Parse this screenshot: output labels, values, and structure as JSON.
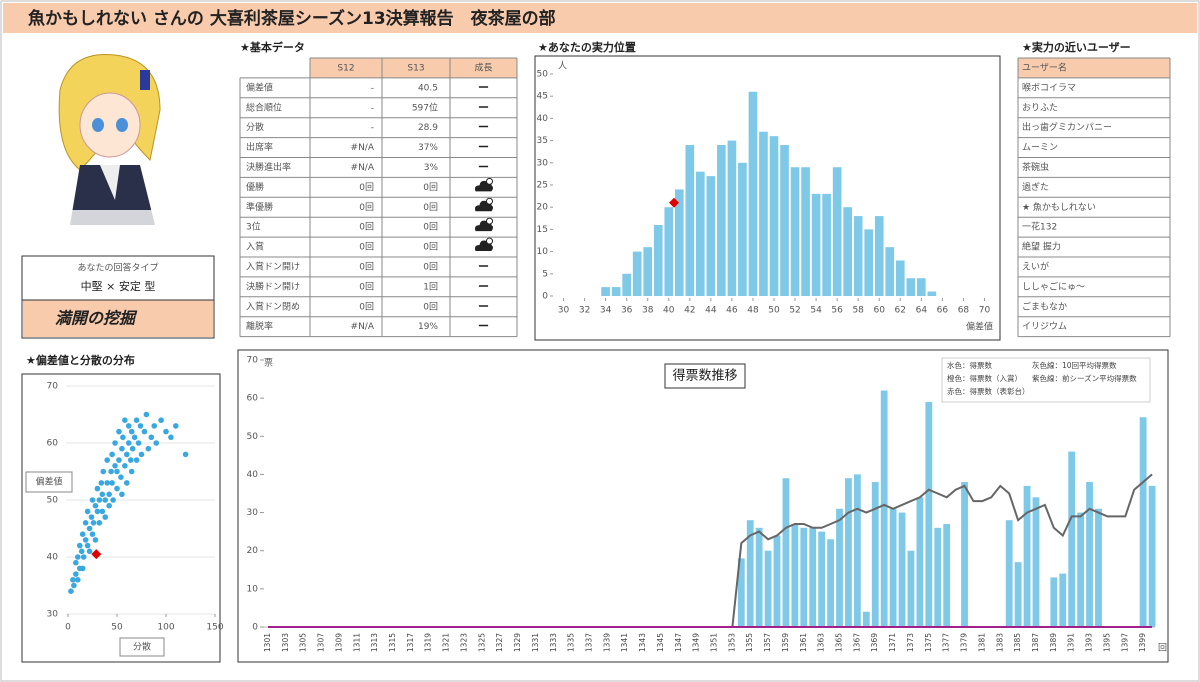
{
  "title": "魚かもしれない さんの 大喜利茶屋シーズン13決算報告　夜茶屋の部",
  "answer_type": {
    "heading": "あなたの回答タイプ",
    "type": "中堅 × 安定 型",
    "nickname": "満開の挖掘"
  },
  "basic_data": {
    "heading": "★基本データ",
    "columns": [
      "S12",
      "S13",
      "成長"
    ],
    "rows": [
      {
        "label": "偏差値",
        "s12": "-",
        "s13": "40.5",
        "growth": "ー"
      },
      {
        "label": "総合順位",
        "s12": "-",
        "s13": "597位",
        "growth": "ー"
      },
      {
        "label": "分散",
        "s12": "-",
        "s13": "28.9",
        "growth": "ー"
      },
      {
        "label": "出席率",
        "s12": "#N/A",
        "s13": "37%",
        "growth": "ー"
      },
      {
        "label": "決勝進出率",
        "s12": "#N/A",
        "s13": "3%",
        "growth": "ー"
      },
      {
        "label": "優勝",
        "s12": "0回",
        "s13": "0回",
        "growth": null
      },
      {
        "label": "準優勝",
        "s12": "0回",
        "s13": "0回",
        "growth": null
      },
      {
        "label": "3位",
        "s12": "0回",
        "s13": "0回",
        "growth": null
      },
      {
        "label": "入賞",
        "s12": "0回",
        "s13": "0回",
        "growth": null
      },
      {
        "label": "入賞ドン開け",
        "s12": "0回",
        "s13": "0回",
        "growth": "ー"
      },
      {
        "label": "決勝ドン開け",
        "s12": "0回",
        "s13": "1回",
        "growth": "ー"
      },
      {
        "label": "入賞ドン閉め",
        "s12": "0回",
        "s13": "0回",
        "growth": "ー"
      },
      {
        "label": "離脱率",
        "s12": "#N/A",
        "s13": "19%",
        "growth": "ー"
      }
    ]
  },
  "near_users": {
    "heading": "★実力の近いユーザー",
    "column": "ユーザー名",
    "names": [
      "喉ボコイラマ",
      "おりふた",
      "出っ歯グミカンパニー",
      "ムーミン",
      "茶碗虫",
      "過ぎた",
      "★ 魚かもしれない",
      "一花132",
      "絶望 握力",
      "えいが",
      "ししゃごにゅ〜",
      "ごまもなか",
      "イリジウム"
    ]
  },
  "chart_data": [
    {
      "type": "bar",
      "title": "★あなたの実力位置",
      "y_unit": "人",
      "xlabel": "偏差値",
      "x": [
        34,
        35,
        36,
        37,
        38,
        39,
        40,
        41,
        42,
        43,
        44,
        45,
        46,
        47,
        48,
        49,
        50,
        51,
        52,
        53,
        54,
        55,
        56,
        57,
        58,
        59,
        60,
        61,
        62,
        63,
        64,
        65
      ],
      "values": [
        2,
        2,
        5,
        10,
        11,
        16,
        20,
        24,
        34,
        28,
        27,
        34,
        35,
        30,
        46,
        37,
        36,
        34,
        29,
        29,
        23,
        23,
        29,
        20,
        18,
        15,
        18,
        11,
        8,
        4,
        4,
        1
      ],
      "color": "#7ec8e8",
      "xlim": [
        29,
        71
      ],
      "xticks": [
        30,
        32,
        34,
        36,
        38,
        40,
        42,
        44,
        46,
        48,
        50,
        52,
        54,
        56,
        58,
        60,
        62,
        64,
        66,
        68,
        70
      ],
      "ylim": [
        0,
        50
      ],
      "yticks": [
        0,
        5,
        10,
        15,
        20,
        25,
        30,
        35,
        40,
        45,
        50
      ],
      "highlight": {
        "x": 40.5,
        "y": 21,
        "color": "#e00000"
      }
    },
    {
      "type": "scatter",
      "title": "★偏差値と分散の分布",
      "xlabel": "分散",
      "ylabel": "偏差値",
      "x": [
        3,
        5,
        6,
        8,
        8,
        10,
        10,
        12,
        12,
        14,
        15,
        15,
        16,
        18,
        18,
        20,
        20,
        22,
        22,
        24,
        25,
        25,
        26,
        28,
        28,
        30,
        30,
        32,
        32,
        34,
        35,
        35,
        36,
        38,
        38,
        40,
        40,
        42,
        42,
        44,
        45,
        45,
        46,
        48,
        48,
        50,
        50,
        52,
        52,
        54,
        55,
        55,
        56,
        58,
        58,
        60,
        60,
        62,
        62,
        64,
        65,
        65,
        66,
        68,
        70,
        70,
        72,
        74,
        75,
        78,
        80,
        82,
        85,
        88,
        90,
        95,
        100,
        105,
        110,
        120
      ],
      "y": [
        34,
        36,
        35,
        37,
        39,
        36,
        40,
        38,
        42,
        41,
        38,
        44,
        40,
        43,
        46,
        42,
        48,
        45,
        41,
        47,
        44,
        50,
        46,
        49,
        43,
        48,
        52,
        46,
        50,
        53,
        48,
        51,
        55,
        50,
        47,
        53,
        57,
        51,
        49,
        55,
        53,
        58,
        50,
        56,
        60,
        52,
        55,
        57,
        62,
        54,
        59,
        51,
        61,
        56,
        64,
        58,
        53,
        60,
        63,
        57,
        55,
        62,
        59,
        61,
        64,
        57,
        60,
        63,
        58,
        62,
        65,
        59,
        61,
        63,
        60,
        64,
        62,
        61,
        63,
        58
      ],
      "color": "#3aa8e0",
      "xlim": [
        0,
        150
      ],
      "xticks": [
        0,
        50,
        100,
        150
      ],
      "ylim": [
        30,
        70
      ],
      "yticks": [
        30,
        40,
        50,
        60,
        70
      ],
      "highlight": {
        "x": 28.9,
        "y": 40.5,
        "color": "#e00000"
      }
    },
    {
      "type": "bar_line",
      "title": "得票数推移",
      "y_unit": "票",
      "x_unit": "回",
      "categories": [
        "1301",
        null,
        "1303",
        null,
        "1305",
        null,
        "1307",
        null,
        "1309",
        null,
        "1311",
        null,
        "1313",
        null,
        "1315",
        null,
        "1317",
        null,
        "1319",
        null,
        "1321",
        null,
        "1323",
        null,
        "1325",
        null,
        "1327",
        null,
        "1329",
        null,
        "1331",
        null,
        "1333",
        null,
        "1335",
        null,
        "1337",
        null,
        "1339",
        null,
        "1341",
        null,
        "1343",
        null,
        "1345",
        null,
        "1347",
        null,
        "1349",
        null,
        "1351",
        null,
        "1353",
        null,
        "1355",
        null,
        "1357",
        null,
        "1359",
        null,
        "1361",
        null,
        "1363",
        null,
        "1365",
        null,
        "1367",
        null,
        "1369",
        null,
        "1371",
        null,
        "1373",
        null,
        "1375",
        null,
        "1377",
        null,
        "1379",
        null,
        "1381",
        null,
        "1383",
        null,
        "1385",
        null,
        "1387",
        null,
        "1389",
        null,
        "1391",
        null,
        "1393",
        null,
        "1395",
        null,
        "1397",
        null,
        "1399",
        null
      ],
      "series": [
        {
          "name": "水色：得票数",
          "type": "bar",
          "color": "#7ec8e8",
          "values": [
            null,
            null,
            null,
            null,
            null,
            null,
            null,
            null,
            null,
            null,
            null,
            null,
            null,
            null,
            null,
            null,
            null,
            null,
            null,
            null,
            null,
            null,
            null,
            null,
            null,
            null,
            null,
            null,
            null,
            null,
            null,
            null,
            null,
            null,
            null,
            null,
            null,
            null,
            null,
            null,
            null,
            null,
            null,
            null,
            null,
            null,
            null,
            null,
            null,
            null,
            null,
            null,
            null,
            18,
            28,
            26,
            20,
            24,
            39,
            27,
            26,
            26,
            25,
            23,
            31,
            39,
            40,
            4,
            38,
            62,
            31,
            30,
            20,
            34,
            59,
            26,
            27,
            null,
            38,
            null,
            null,
            null,
            null,
            28,
            17,
            37,
            34,
            null,
            13,
            14,
            46,
            30,
            38,
            31,
            null,
            null,
            null,
            null,
            55,
            37
          ]
        },
        {
          "name": "灰色線：10回平均得票数",
          "type": "line",
          "color": "#666666",
          "values": [
            null,
            null,
            null,
            null,
            null,
            null,
            null,
            null,
            null,
            null,
            null,
            null,
            null,
            null,
            null,
            null,
            null,
            null,
            null,
            null,
            null,
            null,
            null,
            null,
            null,
            null,
            null,
            null,
            null,
            null,
            null,
            null,
            null,
            null,
            null,
            null,
            null,
            null,
            null,
            null,
            null,
            null,
            null,
            null,
            null,
            null,
            null,
            null,
            null,
            null,
            null,
            null,
            0,
            22,
            24,
            25,
            23,
            24,
            26,
            27,
            27,
            26,
            26,
            27,
            28,
            30,
            31,
            30,
            31,
            32,
            31,
            32,
            33,
            34,
            36,
            35,
            34,
            36,
            37,
            33,
            33,
            34,
            37,
            35,
            28,
            30,
            31,
            32,
            26,
            24,
            29,
            29,
            31,
            30,
            29,
            29,
            29,
            36,
            38,
            40
          ]
        },
        {
          "name": "紫色線：前シーズン平均得票数",
          "type": "line",
          "color": "#a0208c",
          "values": [
            0,
            0,
            0,
            0,
            0,
            0,
            0,
            0,
            0,
            0,
            0,
            0,
            0,
            0,
            0,
            0,
            0,
            0,
            0,
            0,
            0,
            0,
            0,
            0,
            0,
            0,
            0,
            0,
            0,
            0,
            0,
            0,
            0,
            0,
            0,
            0,
            0,
            0,
            0,
            0,
            0,
            0,
            0,
            0,
            0,
            0,
            0,
            0,
            0,
            0,
            0,
            0,
            0,
            0,
            0,
            0,
            0,
            0,
            0,
            0,
            0,
            0,
            0,
            0,
            0,
            0,
            0,
            0,
            0,
            0,
            0,
            0,
            0,
            0,
            0,
            0,
            0,
            0,
            0,
            0,
            0,
            0,
            0,
            0,
            0,
            0,
            0,
            0,
            0,
            0,
            0,
            0,
            0,
            0,
            0,
            0,
            0,
            0,
            0,
            0
          ]
        }
      ],
      "extra_legend": [
        "橙色：得票数（入賞）",
        "赤色：得票数（表彰台）"
      ],
      "ylim": [
        0,
        70
      ],
      "yticks": [
        0,
        10,
        20,
        30,
        40,
        50,
        60,
        70
      ]
    }
  ]
}
